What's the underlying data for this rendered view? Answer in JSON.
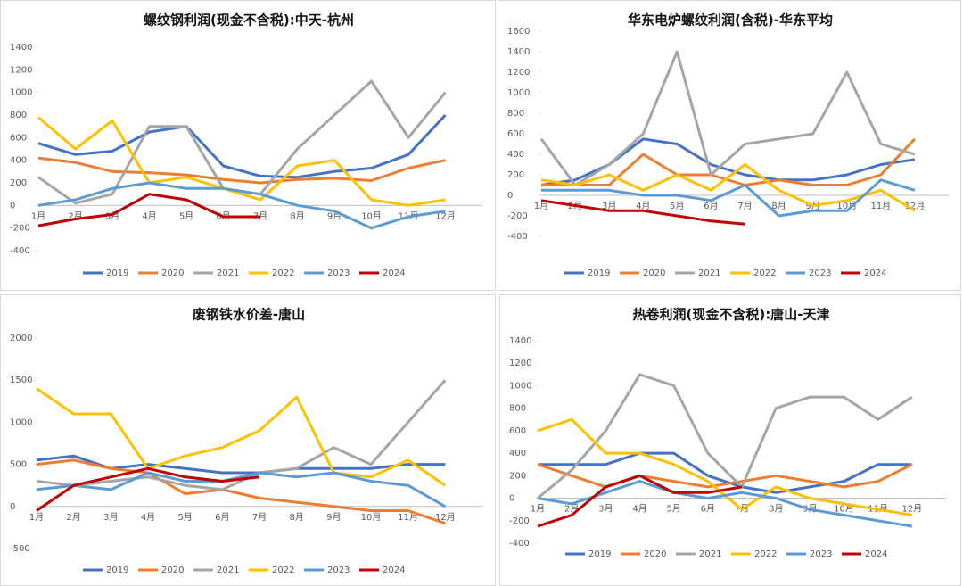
{
  "chart_data": [
    {
      "type": "line",
      "title": "螺纹钢利润(现金不含税):中天-杭州",
      "categories": [
        "1月",
        "2月",
        "3月",
        "4月",
        "5月",
        "6月",
        "7月",
        "8月",
        "9月",
        "10月",
        "11月",
        "12月"
      ],
      "ylim": [
        -400,
        1400
      ],
      "yticks": [
        -400,
        -200,
        0,
        200,
        400,
        600,
        800,
        1000,
        1200,
        1400
      ],
      "legend": "bottom",
      "series": [
        {
          "name": "2019",
          "color": "#4472c4",
          "values": [
            550,
            450,
            480,
            650,
            700,
            350,
            260,
            250,
            300,
            330,
            450,
            800
          ]
        },
        {
          "name": "2020",
          "color": "#ed7d31",
          "values": [
            420,
            380,
            300,
            290,
            270,
            230,
            200,
            230,
            240,
            220,
            330,
            400
          ]
        },
        {
          "name": "2021",
          "color": "#a5a5a5",
          "values": [
            250,
            20,
            100,
            700,
            700,
            150,
            100,
            500,
            800,
            1100,
            600,
            1000
          ]
        },
        {
          "name": "2022",
          "color": "#ffc000",
          "values": [
            780,
            500,
            750,
            200,
            250,
            150,
            50,
            350,
            400,
            50,
            0,
            50
          ]
        },
        {
          "name": "2023",
          "color": "#5b9bd5",
          "values": [
            0,
            50,
            150,
            200,
            150,
            150,
            100,
            0,
            -50,
            -200,
            -100,
            -50
          ]
        },
        {
          "name": "2024",
          "color": "#c00000",
          "values": [
            -180,
            -120,
            -80,
            100,
            50,
            -100,
            -100,
            null,
            null,
            null,
            null,
            null
          ]
        }
      ]
    },
    {
      "type": "line",
      "title": "华东电炉螺纹利润(含税)-华东平均",
      "categories": [
        "1月",
        "2月",
        "3月",
        "4月",
        "5月",
        "6月",
        "7月",
        "8月",
        "9月",
        "10月",
        "11月",
        "12月"
      ],
      "ylim": [
        -400,
        1600
      ],
      "yticks": [
        -400,
        -200,
        0,
        200,
        400,
        600,
        800,
        1000,
        1200,
        1400,
        1600
      ],
      "legend": "bottom",
      "series": [
        {
          "name": "2019",
          "color": "#4472c4",
          "values": [
            100,
            150,
            300,
            550,
            500,
            300,
            200,
            150,
            150,
            200,
            300,
            350
          ]
        },
        {
          "name": "2020",
          "color": "#ed7d31",
          "values": [
            100,
            100,
            100,
            400,
            200,
            200,
            100,
            150,
            100,
            100,
            200,
            550
          ]
        },
        {
          "name": "2021",
          "color": "#a5a5a5",
          "values": [
            550,
            100,
            300,
            600,
            1400,
            200,
            500,
            550,
            600,
            1200,
            500,
            400
          ]
        },
        {
          "name": "2022",
          "color": "#ffc000",
          "values": [
            150,
            100,
            200,
            50,
            200,
            50,
            300,
            50,
            -100,
            -50,
            50,
            -150
          ]
        },
        {
          "name": "2023",
          "color": "#5b9bd5",
          "values": [
            50,
            50,
            50,
            0,
            0,
            -50,
            100,
            -200,
            -150,
            -150,
            150,
            50
          ]
        },
        {
          "name": "2024",
          "color": "#c00000",
          "values": [
            -50,
            -100,
            -150,
            -150,
            -200,
            -250,
            -280,
            null,
            null,
            null,
            null,
            null
          ]
        }
      ]
    },
    {
      "type": "line",
      "title": "废钢铁水价差-唐山",
      "categories": [
        "1月",
        "2月",
        "3月",
        "4月",
        "5月",
        "6月",
        "7月",
        "8月",
        "9月",
        "10月",
        "11月",
        "12月"
      ],
      "ylim": [
        -500,
        2000
      ],
      "yticks": [
        -500,
        0,
        500,
        1000,
        1500,
        2000
      ],
      "legend": "bottom",
      "series": [
        {
          "name": "2019",
          "color": "#4472c4",
          "values": [
            550,
            600,
            450,
            500,
            450,
            400,
            400,
            450,
            450,
            450,
            500,
            500
          ]
        },
        {
          "name": "2020",
          "color": "#ed7d31",
          "values": [
            500,
            550,
            450,
            400,
            150,
            200,
            100,
            50,
            0,
            -50,
            -50,
            -200
          ]
        },
        {
          "name": "2021",
          "color": "#a5a5a5",
          "values": [
            300,
            250,
            300,
            350,
            250,
            200,
            400,
            450,
            700,
            500,
            1000,
            1500
          ]
        },
        {
          "name": "2022",
          "color": "#ffc000",
          "values": [
            1400,
            1100,
            1100,
            450,
            600,
            700,
            900,
            1300,
            400,
            350,
            550,
            250
          ]
        },
        {
          "name": "2023",
          "color": "#5b9bd5",
          "values": [
            200,
            250,
            200,
            400,
            300,
            300,
            400,
            350,
            400,
            300,
            250,
            0
          ]
        },
        {
          "name": "2024",
          "color": "#c00000",
          "values": [
            -50,
            250,
            350,
            450,
            350,
            300,
            350,
            null,
            null,
            null,
            null,
            null
          ]
        }
      ]
    },
    {
      "type": "line",
      "title": "热卷利润(现金不含税):唐山-天津",
      "categories": [
        "1月",
        "2月",
        "3月",
        "4月",
        "5月",
        "6月",
        "7月",
        "8月",
        "9月",
        "10月",
        "11月",
        "12月"
      ],
      "ylim": [
        -400,
        1400
      ],
      "yticks": [
        -400,
        -200,
        0,
        200,
        400,
        600,
        800,
        1000,
        1200,
        1400
      ],
      "legend": "bottom",
      "series": [
        {
          "name": "2019",
          "color": "#4472c4",
          "values": [
            300,
            300,
            300,
            400,
            400,
            200,
            100,
            50,
            100,
            150,
            300,
            300
          ]
        },
        {
          "name": "2020",
          "color": "#ed7d31",
          "values": [
            300,
            200,
            100,
            200,
            150,
            100,
            150,
            200,
            150,
            100,
            150,
            300
          ]
        },
        {
          "name": "2021",
          "color": "#a5a5a5",
          "values": [
            0,
            250,
            600,
            1100,
            1000,
            400,
            100,
            800,
            900,
            900,
            700,
            900
          ]
        },
        {
          "name": "2022",
          "color": "#ffc000",
          "values": [
            600,
            700,
            400,
            400,
            300,
            150,
            -100,
            100,
            0,
            -50,
            -100,
            -150
          ]
        },
        {
          "name": "2023",
          "color": "#5b9bd5",
          "values": [
            0,
            -50,
            50,
            150,
            50,
            0,
            50,
            0,
            -100,
            -150,
            -200,
            -250
          ]
        },
        {
          "name": "2024",
          "color": "#c00000",
          "values": [
            -250,
            -150,
            100,
            200,
            50,
            50,
            100,
            null,
            null,
            null,
            null,
            null
          ]
        }
      ]
    }
  ]
}
